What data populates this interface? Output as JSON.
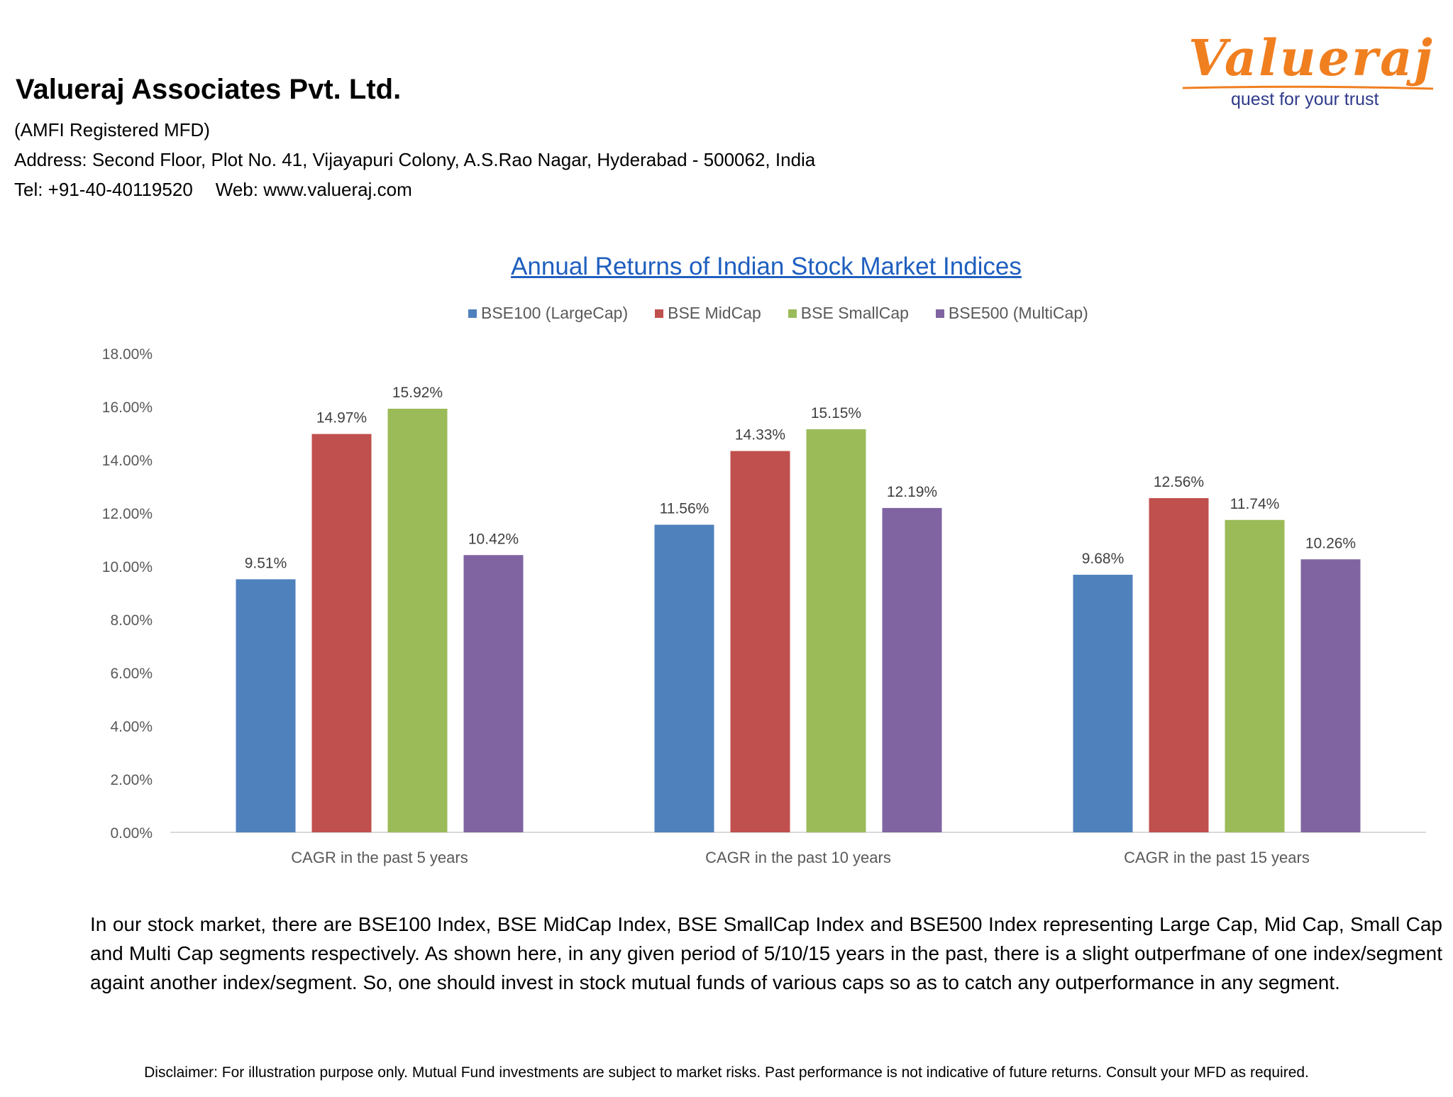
{
  "header": {
    "company_name": "Valueraj Associates Pvt. Ltd.",
    "registration": "(AMFI Registered MFD)",
    "address": "Address: Second Floor, Plot No. 41, Vijayapuri Colony, A.S.Rao Nagar, Hyderabad - 500062, India",
    "tel": "Tel: +91-40-40119520",
    "web": "Web: www.valueraj.com"
  },
  "logo": {
    "wordmark": "Valueraj",
    "tagline": "quest for your trust",
    "wordmark_color": "#f07f20",
    "tagline_color": "#2f3b8a"
  },
  "chart_data": {
    "type": "bar",
    "title": "Annual Returns of Indian Stock Market Indices",
    "xlabel": "",
    "ylabel": "",
    "categories": [
      "CAGR in the past 5 years",
      "CAGR in the past 10 years",
      "CAGR in the past 15 years"
    ],
    "series": [
      {
        "name": "BSE100 (LargeCap)",
        "color": "#4f81bd",
        "values": [
          9.51,
          11.56,
          9.68
        ],
        "labels": [
          "9.51%",
          "11.56%",
          "9.68%"
        ]
      },
      {
        "name": "BSE MidCap",
        "color": "#c0504d",
        "values": [
          14.97,
          14.33,
          12.56
        ],
        "labels": [
          "14.97%",
          "14.33%",
          "12.56%"
        ]
      },
      {
        "name": "BSE SmallCap",
        "color": "#9bbb59",
        "values": [
          15.92,
          15.15,
          11.74
        ],
        "labels": [
          "15.92%",
          "15.15%",
          "11.74%"
        ]
      },
      {
        "name": "BSE500 (MultiCap)",
        "color": "#8064a2",
        "values": [
          10.42,
          12.19,
          10.26
        ],
        "labels": [
          "10.42%",
          "12.19%",
          "10.26%"
        ]
      }
    ],
    "yticks": [
      "0.00%",
      "2.00%",
      "4.00%",
      "6.00%",
      "8.00%",
      "10.00%",
      "12.00%",
      "14.00%",
      "16.00%",
      "18.00%"
    ],
    "ylim": [
      0,
      18
    ],
    "grid": false,
    "legend_position": "top"
  },
  "body_text": "In our stock market, there are BSE100 Index, BSE MidCap Index, BSE SmallCap Index and BSE500 Index representing Large Cap, Mid Cap, Small Cap and Multi Cap segments respectively. As shown here, in any given period of 5/10/15 years in the past, there is a slight outperfmane of one index/segment againt another index/segment. So, one should invest in stock mutual funds of various caps so as to catch any outperformance in any segment.",
  "disclaimer": "Disclaimer: For illustration purpose only. Mutual Fund investments are subject to market risks. Past performance is not indicative of future returns. Consult your MFD as required."
}
